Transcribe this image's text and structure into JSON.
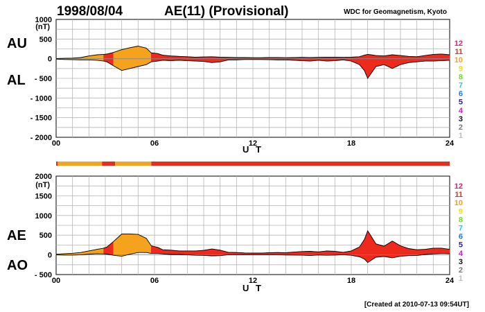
{
  "header": {
    "date": "1998/08/04",
    "title": "AE(11) (Provisional)",
    "source": "WDC for Geomagnetism, Kyoto",
    "created": "[Created at 2010-07-13 09:54UT]"
  },
  "legend": {
    "station_counts": [
      {
        "label": "12",
        "color": "#e8157f"
      },
      {
        "label": "11",
        "color": "#ee2a1c"
      },
      {
        "label": "10",
        "color": "#f5a21c"
      },
      {
        "label": "9",
        "color": "#e6e600"
      },
      {
        "label": "8",
        "color": "#66e60f"
      },
      {
        "label": "7",
        "color": "#1ec8e6"
      },
      {
        "label": "6",
        "color": "#1e78e6"
      },
      {
        "label": "5",
        "color": "#2a1eb4"
      },
      {
        "label": "4",
        "color": "#c81ec8"
      },
      {
        "label": "3",
        "color": "#111111"
      },
      {
        "label": "2",
        "color": "#777777"
      },
      {
        "label": "1",
        "color": "#bbbbbb"
      }
    ]
  },
  "chart_data": [
    {
      "type": "area",
      "panel": "AU/AL",
      "series_labels": [
        "AU",
        "AL"
      ],
      "ylabel": "(nT)",
      "xlabel": "U T",
      "ylim": [
        -2000,
        1000
      ],
      "yticks": [
        "1000",
        "500",
        "0",
        "- 500",
        "- 1000",
        "- 1500",
        "- 2000"
      ],
      "xlim": [
        0,
        24
      ],
      "xticks": [
        "00",
        "06",
        "12",
        "18",
        "24"
      ],
      "grid": true,
      "x_hours": [
        0,
        0.5,
        1,
        1.5,
        2,
        2.5,
        2.9,
        3.1,
        3.5,
        4,
        4.5,
        5,
        5.5,
        5.8,
        6.2,
        6.5,
        7,
        7.5,
        8,
        8.5,
        9,
        9.5,
        10,
        10.5,
        11,
        11.5,
        12,
        12.5,
        13,
        13.5,
        14,
        14.5,
        15,
        15.5,
        16,
        16.5,
        17,
        17.5,
        18,
        18.5,
        18.8,
        19,
        19.2,
        19.5,
        20,
        20.5,
        21,
        21.5,
        22,
        22.5,
        23,
        23.5,
        24
      ],
      "AU": [
        5,
        10,
        15,
        30,
        70,
        100,
        110,
        120,
        160,
        230,
        280,
        320,
        270,
        150,
        130,
        90,
        70,
        60,
        50,
        40,
        45,
        50,
        40,
        35,
        30,
        30,
        25,
        25,
        30,
        30,
        25,
        30,
        35,
        30,
        35,
        40,
        40,
        35,
        40,
        50,
        90,
        110,
        100,
        80,
        70,
        100,
        80,
        60,
        50,
        80,
        110,
        120,
        100
      ],
      "AL": [
        -10,
        -20,
        -25,
        -30,
        -30,
        -40,
        -60,
        -80,
        -180,
        -300,
        -250,
        -200,
        -150,
        -80,
        -60,
        -40,
        -50,
        -40,
        -50,
        -60,
        -70,
        -100,
        -80,
        -30,
        -30,
        -20,
        -20,
        -20,
        -25,
        -30,
        -30,
        -40,
        -50,
        -60,
        -40,
        -60,
        -50,
        -30,
        -60,
        -150,
        -300,
        -500,
        -380,
        -200,
        -150,
        -250,
        -150,
        -100,
        -80,
        -60,
        -60,
        -50,
        -40
      ]
    },
    {
      "type": "area",
      "panel": "AE/AO",
      "series_labels": [
        "AE",
        "AO"
      ],
      "ylabel": "(nT)",
      "xlabel": "U T",
      "ylim": [
        -500,
        2000
      ],
      "yticks": [
        "2000",
        "1500",
        "1000",
        "500",
        "0",
        "- 500"
      ],
      "xlim": [
        0,
        24
      ],
      "xticks": [
        "00",
        "06",
        "12",
        "18",
        "24"
      ],
      "grid": true,
      "station_count_bar": [
        {
          "from": 0,
          "to": 0.1,
          "stations": "11"
        },
        {
          "from": 0.1,
          "to": 2.8,
          "stations": "10"
        },
        {
          "from": 2.8,
          "to": 3.6,
          "stations": "11"
        },
        {
          "from": 3.6,
          "to": 5.8,
          "stations": "10"
        },
        {
          "from": 5.8,
          "to": 24,
          "stations": "11"
        }
      ],
      "x_hours": [
        0,
        0.5,
        1,
        1.5,
        2,
        2.5,
        2.9,
        3.1,
        3.5,
        4,
        4.5,
        5,
        5.5,
        5.8,
        6.2,
        6.5,
        7,
        7.5,
        8,
        8.5,
        9,
        9.5,
        10,
        10.5,
        11,
        11.5,
        12,
        12.5,
        13,
        13.5,
        14,
        14.5,
        15,
        15.5,
        16,
        16.5,
        17,
        17.5,
        18,
        18.5,
        18.8,
        19,
        19.2,
        19.5,
        20,
        20.5,
        21,
        21.5,
        22,
        22.5,
        23,
        23.5,
        24
      ],
      "AE": [
        15,
        30,
        40,
        60,
        100,
        140,
        170,
        200,
        340,
        530,
        530,
        520,
        420,
        230,
        190,
        130,
        120,
        100,
        100,
        100,
        115,
        150,
        120,
        65,
        60,
        50,
        45,
        45,
        55,
        60,
        55,
        70,
        85,
        90,
        75,
        100,
        90,
        65,
        100,
        200,
        390,
        610,
        480,
        280,
        220,
        350,
        230,
        160,
        130,
        140,
        170,
        170,
        140
      ],
      "AO": [
        -2,
        -5,
        -5,
        0,
        20,
        30,
        25,
        20,
        -10,
        -35,
        15,
        60,
        60,
        35,
        35,
        25,
        10,
        10,
        0,
        -10,
        -12,
        -25,
        -20,
        3,
        0,
        5,
        3,
        3,
        3,
        0,
        -3,
        -5,
        -8,
        -15,
        -3,
        -10,
        -5,
        3,
        -10,
        -50,
        -105,
        -195,
        -140,
        -60,
        -40,
        -75,
        -35,
        -20,
        -15,
        10,
        25,
        35,
        30
      ]
    }
  ]
}
